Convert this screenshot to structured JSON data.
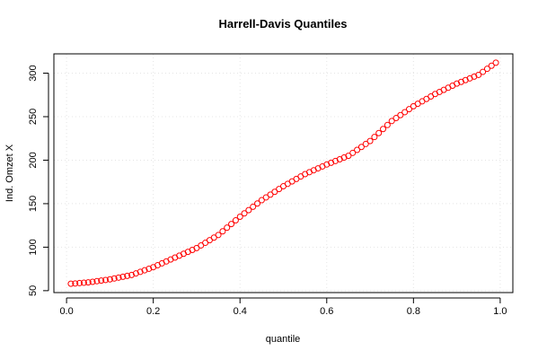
{
  "chart_data": {
    "type": "scatter",
    "title": "Harrell-Davis Quantiles",
    "x_label": "quantile",
    "y_label": "Ind. Omzet X",
    "x": [
      0.01,
      0.02,
      0.03,
      0.04,
      0.05,
      0.06,
      0.07,
      0.08,
      0.09,
      0.1,
      0.11,
      0.12,
      0.13,
      0.14,
      0.15,
      0.16,
      0.17,
      0.18,
      0.19,
      0.2,
      0.21,
      0.22,
      0.23,
      0.24,
      0.25,
      0.26,
      0.27,
      0.28,
      0.29,
      0.3,
      0.31,
      0.32,
      0.33,
      0.34,
      0.35,
      0.36,
      0.37,
      0.38,
      0.39,
      0.4,
      0.41,
      0.42,
      0.43,
      0.44,
      0.45,
      0.46,
      0.47,
      0.48,
      0.49,
      0.5,
      0.51,
      0.52,
      0.53,
      0.54,
      0.55,
      0.56,
      0.57,
      0.58,
      0.59,
      0.6,
      0.61,
      0.62,
      0.63,
      0.64,
      0.65,
      0.66,
      0.67,
      0.68,
      0.69,
      0.7,
      0.71,
      0.72,
      0.73,
      0.74,
      0.75,
      0.76,
      0.77,
      0.78,
      0.79,
      0.8,
      0.81,
      0.82,
      0.83,
      0.84,
      0.85,
      0.86,
      0.87,
      0.88,
      0.89,
      0.9,
      0.91,
      0.92,
      0.93,
      0.94,
      0.95,
      0.96,
      0.97,
      0.98,
      0.99
    ],
    "values": [
      58,
      58.3,
      58.7,
      59.1,
      59.5,
      60.2,
      60.9,
      61.6,
      62.3,
      63,
      64,
      65,
      66,
      67,
      68,
      69.8,
      71.6,
      73.4,
      75.2,
      77,
      79.2,
      81.4,
      83.6,
      85.8,
      88,
      90.2,
      92.4,
      94.6,
      96.8,
      99,
      102,
      105,
      108,
      111,
      114,
      118.2,
      122.4,
      126.6,
      130.8,
      135,
      138.8,
      142.6,
      146.4,
      150.2,
      154,
      157.2,
      160.4,
      163.6,
      166.8,
      170,
      172.8,
      175.6,
      178.4,
      181.2,
      184,
      186.2,
      188.4,
      190.6,
      192.8,
      195,
      197,
      199,
      201,
      203,
      205,
      208.4,
      211.8,
      215.2,
      218.6,
      222,
      226.6,
      231.2,
      235.8,
      240.4,
      245,
      248.4,
      251.8,
      255.2,
      258.6,
      262,
      264.8,
      267.6,
      270.4,
      273.2,
      276,
      278.4,
      280.8,
      283.2,
      285.6,
      288,
      290,
      292,
      294,
      296,
      298,
      301.5,
      305,
      308.5,
      312
    ],
    "color": "#ff0000",
    "xlim": [
      -0.0292,
      1.0292
    ],
    "ylim": [
      47.8,
      322.2
    ],
    "xticks": [
      {
        "value": 0,
        "label": "0.0"
      },
      0.2,
      0.4,
      0.6,
      0.8,
      {
        "value": 1,
        "label": "1.0"
      }
    ],
    "yticks": [
      50,
      100,
      150,
      200,
      250,
      300
    ],
    "grid": true
  }
}
